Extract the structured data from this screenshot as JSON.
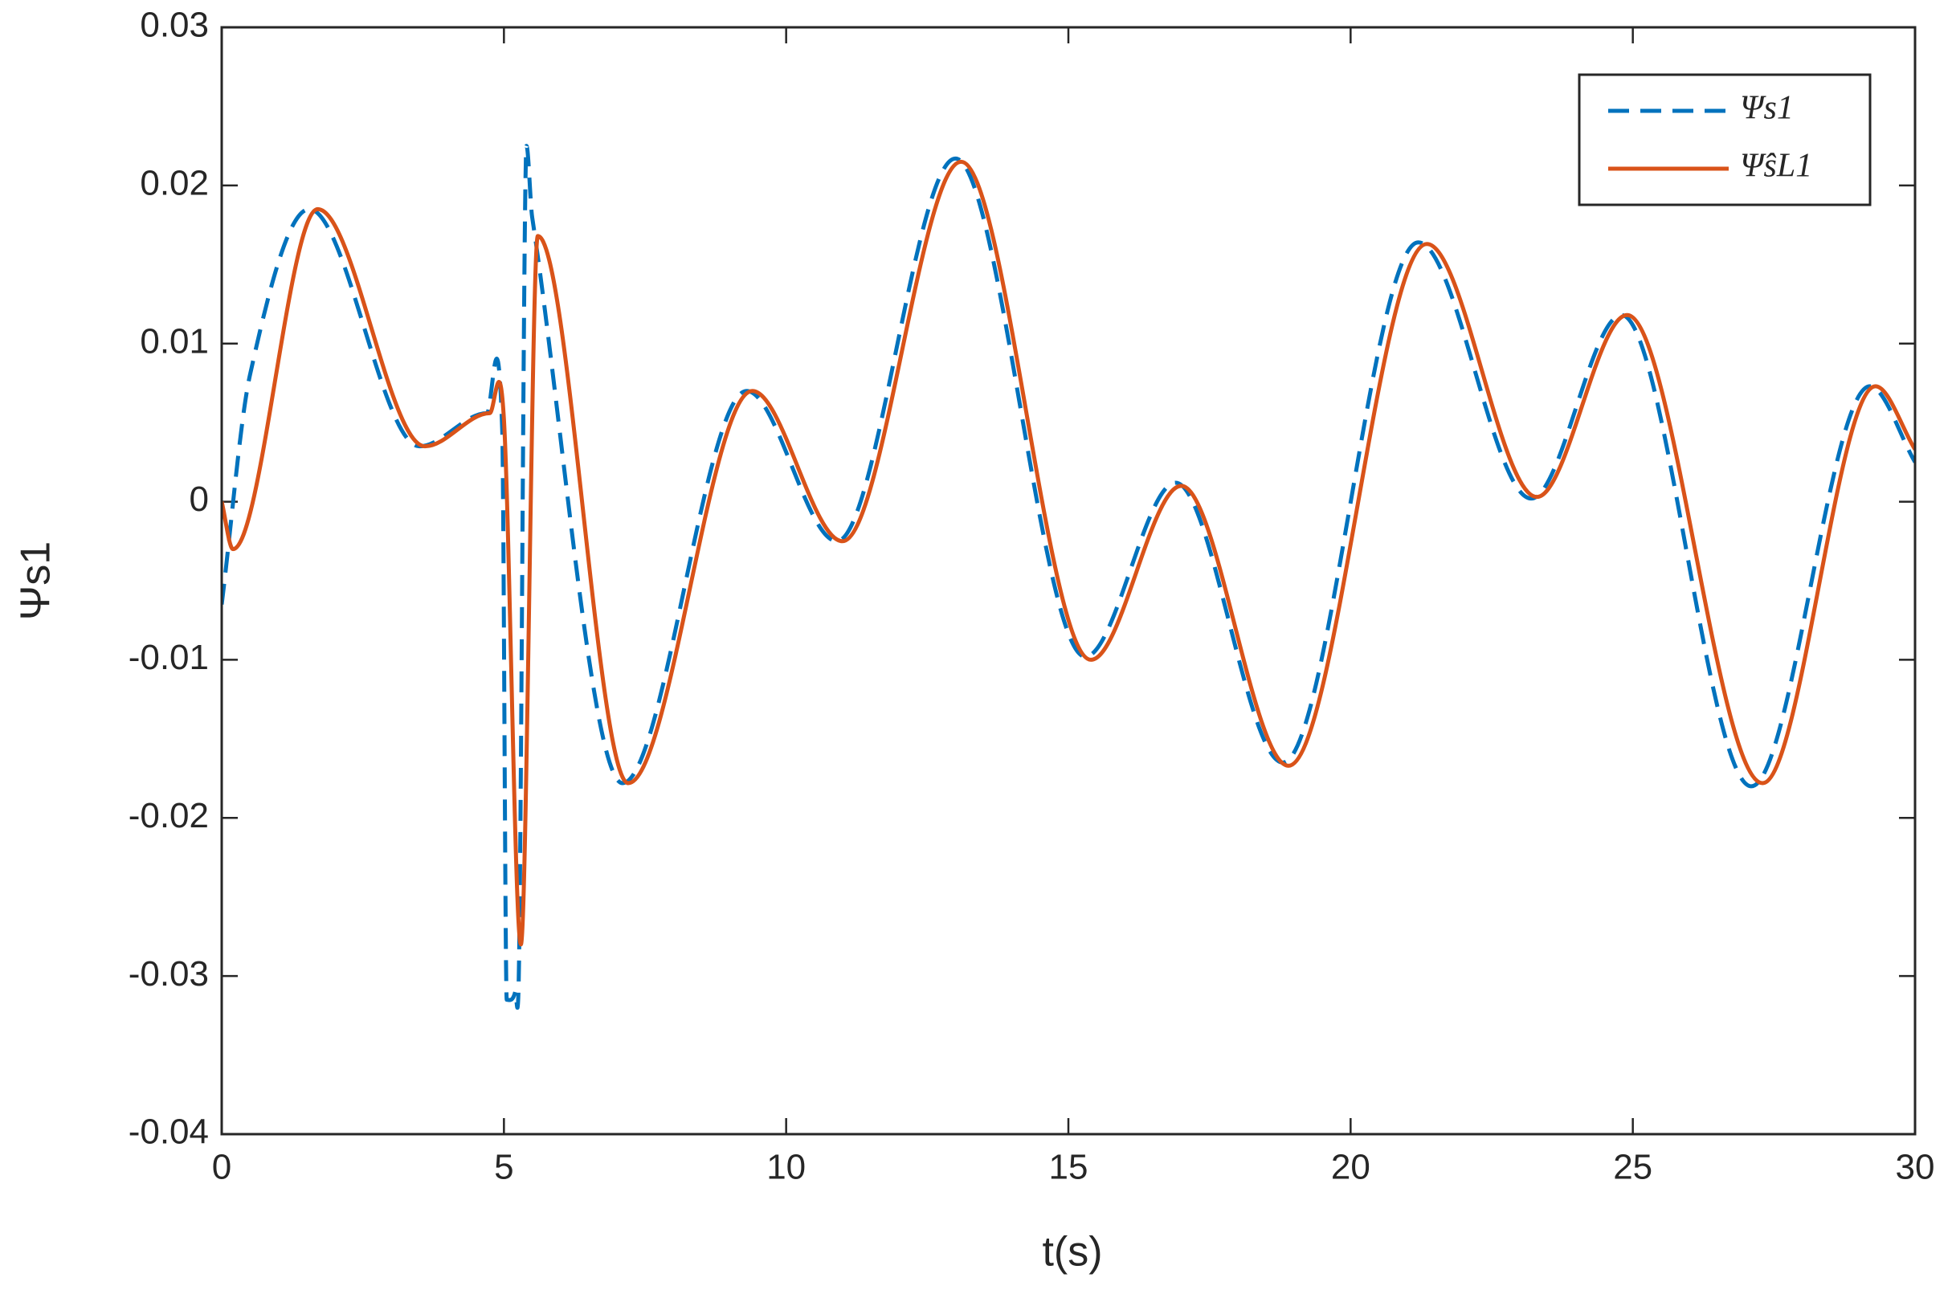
{
  "chart_data": {
    "type": "line",
    "xlabel": "t(s)",
    "ylabel": "Ψs1",
    "xlim": [
      0,
      30
    ],
    "xticks": [
      0,
      5,
      10,
      15,
      20,
      25,
      30
    ],
    "ylim": [
      -0.04,
      0.03
    ],
    "yticks": [
      -0.04,
      -0.03,
      -0.02,
      -0.01,
      0,
      0.01,
      0.02,
      0.03
    ],
    "legend": "upper right",
    "series": [
      {
        "name": "Ψs1",
        "color": "#0072BD",
        "dash": true,
        "x": [
          0,
          0.5,
          1.55,
          3.5,
          4.7,
          4.97,
          5.05,
          5.2,
          5.27,
          5.4,
          5.5,
          7.1,
          9.3,
          10.9,
          13.0,
          15.3,
          16.9,
          18.8,
          21.2,
          23.2,
          24.8,
          27.1,
          29.2,
          30
        ],
        "values": [
          -0.0065,
          0.008,
          0.0185,
          0.0035,
          0.0056,
          0.0045,
          -0.0315,
          -0.031,
          -0.0285,
          0.0225,
          0.018,
          -0.0178,
          0.007,
          -0.0025,
          0.0217,
          -0.0098,
          0.0012,
          -0.0165,
          0.0164,
          0.0002,
          0.0118,
          -0.018,
          0.0073,
          0.0025
        ]
      },
      {
        "name": "Ψ̂sL1",
        "color": "#D95319",
        "dash": false,
        "x": [
          0,
          0.2,
          1.7,
          3.6,
          4.75,
          5.0,
          5.3,
          5.6,
          7.2,
          9.4,
          11.0,
          13.1,
          15.4,
          17.0,
          18.9,
          21.35,
          23.3,
          24.9,
          27.3,
          29.3,
          30
        ],
        "values": [
          0,
          -0.003,
          0.0185,
          0.0035,
          0.0056,
          0.0052,
          -0.028,
          0.0168,
          -0.0178,
          0.007,
          -0.0025,
          0.0215,
          -0.01,
          0.001,
          -0.0167,
          0.0163,
          0.0003,
          0.0118,
          -0.0178,
          0.0073,
          0.0033
        ]
      }
    ]
  }
}
